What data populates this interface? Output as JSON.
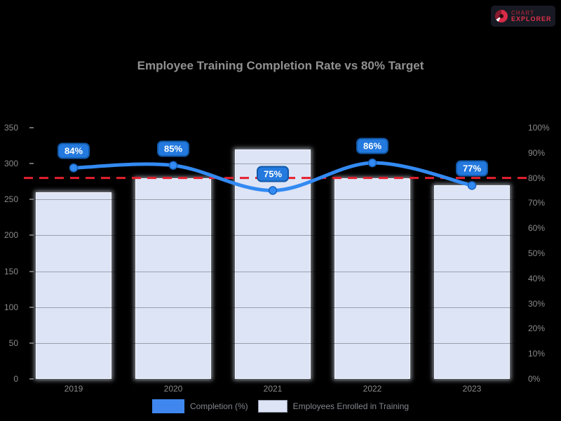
{
  "logo": {
    "line1": "CHART",
    "line2": "EXPLORER"
  },
  "title": "Employee Training Completion Rate vs 80% Target",
  "chart_data": {
    "type": "bar",
    "subtype": "combo-bar-line",
    "title": "Employee Training Completion Rate vs 80% Target",
    "categories": [
      "2019",
      "2020",
      "2021",
      "2022",
      "2023"
    ],
    "series": [
      {
        "name": "Completion (%)",
        "type": "line",
        "axis": "right",
        "values": [
          84,
          85,
          75,
          86,
          77
        ],
        "color": "#338af2",
        "point_labels": [
          "84%",
          "85%",
          "75%",
          "86%",
          "77%"
        ]
      },
      {
        "name": "Employees Enrolled in Training",
        "type": "bar",
        "axis": "left",
        "values": [
          260,
          280,
          320,
          280,
          270
        ],
        "color": "#dde4f6"
      }
    ],
    "target_line": {
      "value": 80,
      "axis": "right",
      "color": "#e5202e",
      "style": "dashed"
    },
    "left_axis": {
      "min": 0,
      "max": 350,
      "step": 50,
      "suffix": ""
    },
    "right_axis": {
      "min": 0,
      "max": 100,
      "step": 10,
      "suffix": "%"
    },
    "grid": "subtle",
    "legend_position": "bottom"
  },
  "legend": [
    {
      "label": "Completion (%)",
      "swatch": "#3f87ee"
    },
    {
      "label": "Employees Enrolled in Training",
      "swatch": "#dde4f6"
    }
  ],
  "colors": {
    "background": "#000000",
    "bar_fill": "#dde4f6",
    "line": "#338af2",
    "badge_fill": "#2379de",
    "badge_border": "#1159a8",
    "target_red": "#e5202e",
    "axis_text": "#8a8a8a",
    "title_text": "#919191"
  }
}
